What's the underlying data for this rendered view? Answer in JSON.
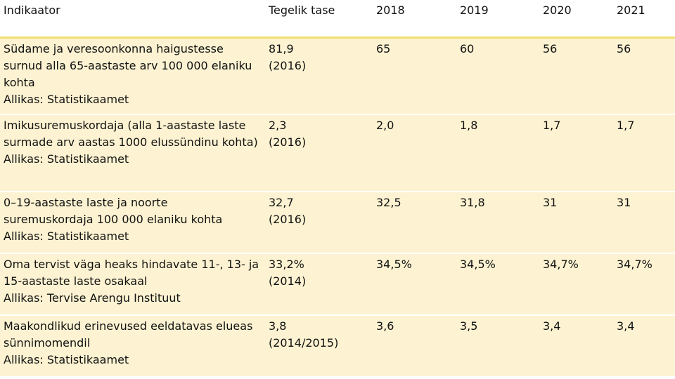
{
  "header": {
    "indicator": "Indikaator",
    "actual": "Tegelik tase",
    "y2018": "2018",
    "y2019": "2019",
    "y2020": "2020",
    "y2021": "2021"
  },
  "rows": [
    {
      "indicator": "Südame ja veresoonkonna haigustesse surnud alla 65-aastaste arv 100 000 elaniku kohta",
      "source": "Allikas: Statistikaamet",
      "actual_value": "81,9",
      "actual_year": "(2016)",
      "y2018": "65",
      "y2019": "60",
      "y2020": "56",
      "y2021": "56"
    },
    {
      "indicator": "Imikusuremuskordaja (alla 1-aastaste laste surmade arv aastas 1000 elussündinu kohta)",
      "source": "Allikas: Statistikaamet",
      "actual_value": "2,3",
      "actual_year": "(2016)",
      "y2018": "2,0",
      "y2019": "1,8",
      "y2020": "1,7",
      "y2021": "1,7"
    },
    {
      "indicator": "0–19-aastaste laste ja noorte suremuskordaja 100 000 elaniku kohta",
      "source": "Allikas: Statistikaamet",
      "actual_value": "32,7",
      "actual_year": "(2016)",
      "y2018": "32,5",
      "y2019": "31,8",
      "y2020": "31",
      "y2021": "31"
    },
    {
      "indicator": "Oma tervist väga heaks hindavate 11-, 13- ja 15-aastaste laste osakaal",
      "source": "Allikas: Tervise Arengu Instituut",
      "actual_value": "33,2%",
      "actual_year": "(2014)",
      "y2018": "34,5%",
      "y2019": "34,5%",
      "y2020": "34,7%",
      "y2021": "34,7%"
    },
    {
      "indicator": "Maakondlikud erinevused eeldatavas elueas sünnimomendil",
      "source": "Allikas: Statistikaamet",
      "actual_value": "3,8",
      "actual_year": "(2014/2015)",
      "y2018": "3,6",
      "y2019": "3,5",
      "y2020": "3,4",
      "y2021": "3,4"
    }
  ]
}
